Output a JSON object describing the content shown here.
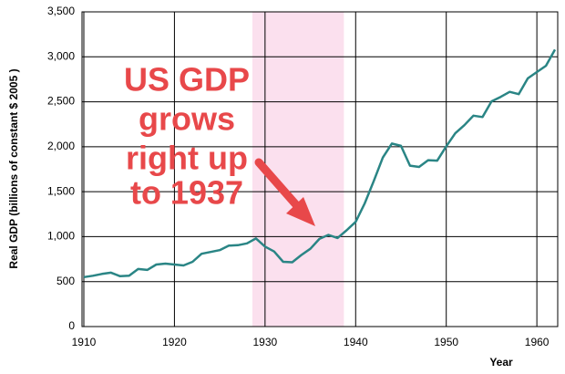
{
  "chart_data": {
    "type": "line",
    "y_label": "Real GDP (billions of constant $ 2005 )",
    "x_label": "Year",
    "annotation": [
      "US GDP",
      "grows",
      "right up",
      "to 1937"
    ],
    "highlight": {
      "x": [
        1928.6,
        1938.7
      ],
      "color": "#fbe0ee"
    },
    "color": "#2a8585",
    "x": [
      1910,
      1911,
      1912,
      1913,
      1914,
      1915,
      1916,
      1917,
      1918,
      1919,
      1920,
      1921,
      1922,
      1923,
      1924,
      1925,
      1926,
      1927,
      1928,
      1929,
      1930,
      1931,
      1932,
      1933,
      1934,
      1935,
      1936,
      1937,
      1938,
      1939,
      1940,
      1941,
      1942,
      1943,
      1944,
      1945,
      1946,
      1947,
      1948,
      1949,
      1950,
      1951,
      1952,
      1953,
      1954,
      1955,
      1956,
      1957,
      1958,
      1959,
      1960,
      1961,
      1962
    ],
    "values": [
      550,
      565,
      585,
      600,
      560,
      565,
      640,
      630,
      690,
      700,
      690,
      680,
      720,
      810,
      830,
      850,
      900,
      905,
      925,
      980,
      890,
      835,
      720,
      715,
      795,
      865,
      975,
      1020,
      985,
      1070,
      1165,
      1370,
      1620,
      1880,
      2035,
      2010,
      1790,
      1775,
      1850,
      1845,
      2005,
      2150,
      2240,
      2345,
      2330,
      2505,
      2555,
      2610,
      2585,
      2760,
      2830,
      2900,
      3080
    ],
    "xlim": [
      1909.8,
      1962.3
    ],
    "ylim": [
      0,
      3500
    ],
    "xticks": [
      1910,
      1920,
      1930,
      1940,
      1950,
      1960
    ],
    "yticks": [
      0,
      500,
      {
        "value": 1000,
        "label": "1,000"
      },
      {
        "value": 1500,
        "label": "1,500"
      },
      {
        "value": 2000,
        "label": "2,000"
      },
      {
        "value": 2500,
        "label": "2,500"
      },
      {
        "value": 3000,
        "label": "3,000"
      },
      {
        "value": 3500,
        "label": "3,500"
      }
    ],
    "grid": true
  }
}
